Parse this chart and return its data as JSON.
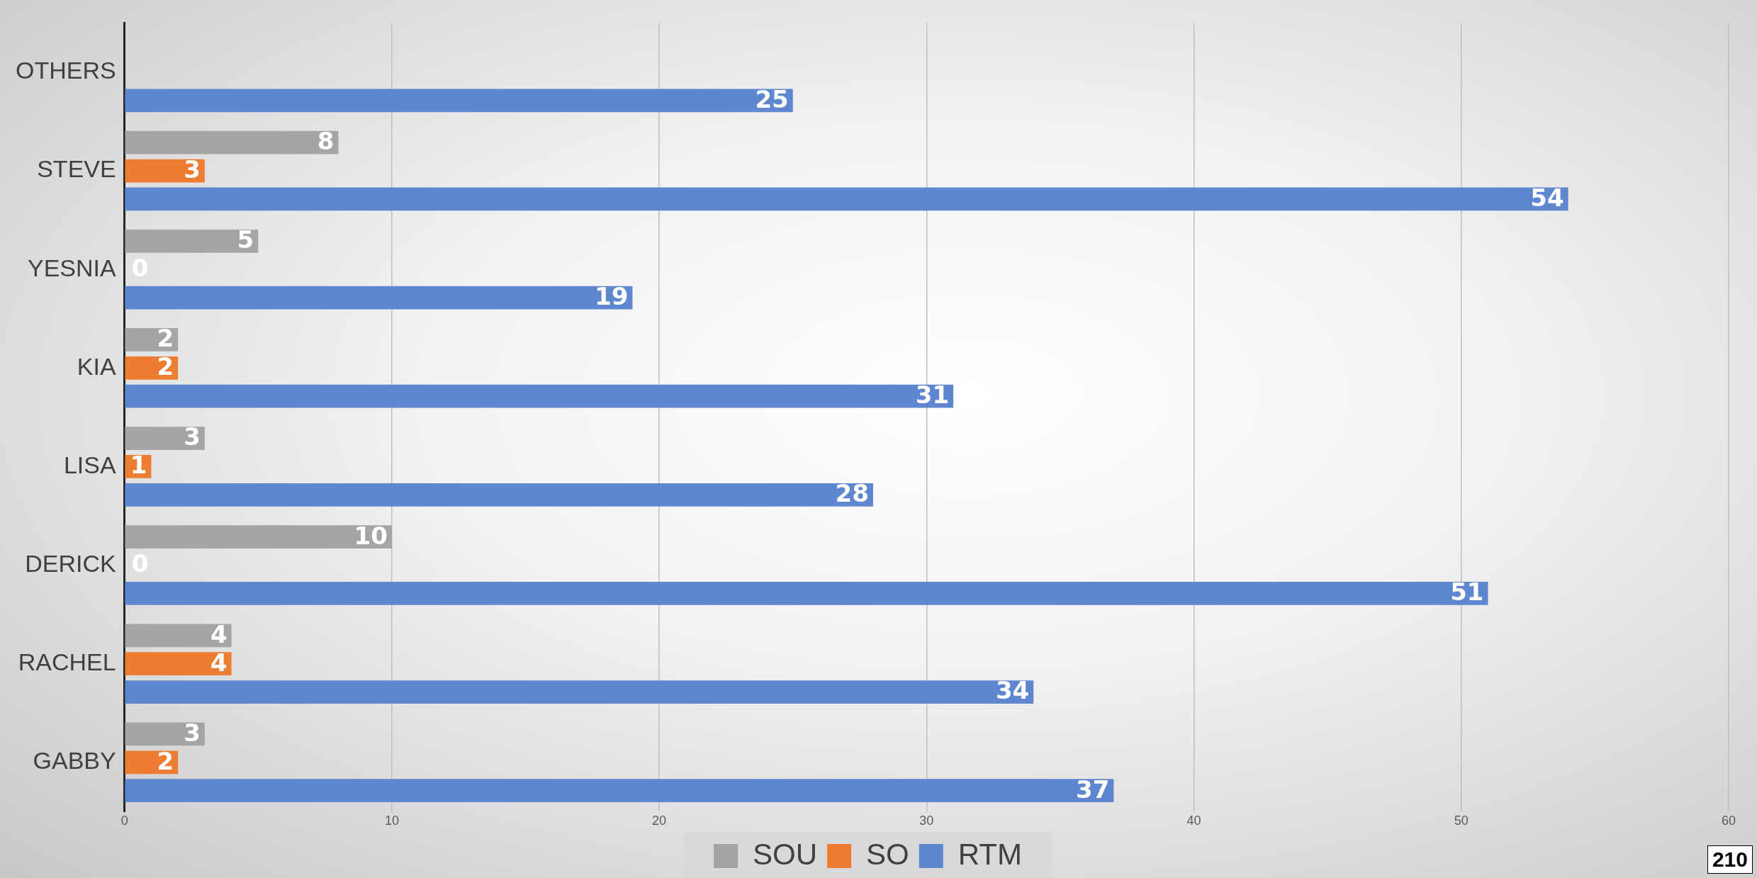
{
  "chart_data": {
    "type": "bar",
    "orientation": "horizontal",
    "categories": [
      "OTHERS",
      "STEVE",
      "YESNIA",
      "KIA",
      "LISA",
      "DERICK",
      "RACHEL",
      "GABBY"
    ],
    "series": [
      {
        "name": "SOU",
        "color": "#a5a5a5",
        "values": [
          null,
          8,
          5,
          2,
          3,
          10,
          4,
          3
        ]
      },
      {
        "name": "SO",
        "color": "#ed7d31",
        "values": [
          null,
          3,
          0,
          2,
          1,
          0,
          4,
          2
        ]
      },
      {
        "name": "RTM",
        "color": "#5f87cf",
        "values": [
          25,
          54,
          19,
          31,
          28,
          51,
          34,
          37
        ]
      }
    ],
    "xlim": [
      0,
      60
    ],
    "xticks": [
      0,
      10,
      20,
      30,
      40,
      50,
      60
    ],
    "grid": "x",
    "legend": "bottom",
    "data_labels": true,
    "annotations": [
      "210"
    ]
  }
}
